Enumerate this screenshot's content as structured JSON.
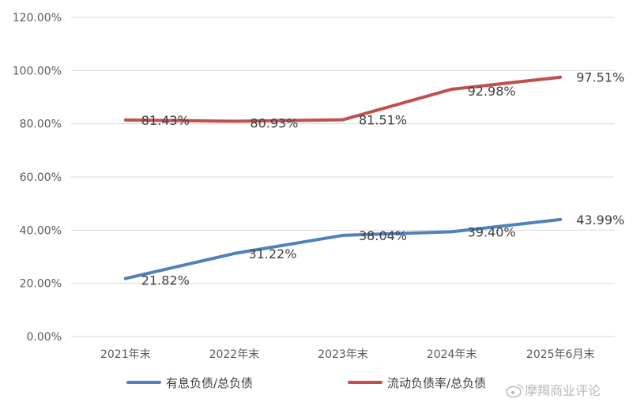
{
  "chart_data": {
    "type": "line",
    "categories": [
      "2021年末",
      "2022年末",
      "2023年末",
      "2024年末",
      "2025年6月末"
    ],
    "series": [
      {
        "name": "有息负债/总负债",
        "color": "#4f81bd",
        "values": [
          21.82,
          31.22,
          38.04,
          39.4,
          43.99
        ],
        "labels": [
          "21.82%",
          "31.22%",
          "38.04%",
          "39.40%",
          "43.99%"
        ]
      },
      {
        "name": "流动负债率/总负债",
        "color": "#c0504d",
        "values": [
          81.43,
          80.93,
          81.51,
          92.98,
          97.51
        ],
        "labels": [
          "81.43%",
          "80.93%",
          "81.51%",
          "92.98%",
          "97.51%"
        ]
      }
    ],
    "ylim": [
      0,
      120
    ],
    "yticks": [
      "0.00%",
      "20.00%",
      "40.00%",
      "60.00%",
      "80.00%",
      "100.00%",
      "120.00%"
    ],
    "grid": true,
    "legend": "bottom",
    "title": "",
    "xlabel": "",
    "ylabel": ""
  },
  "watermark": {
    "text": "摩羯商业评论",
    "icon": "weibo-icon"
  }
}
